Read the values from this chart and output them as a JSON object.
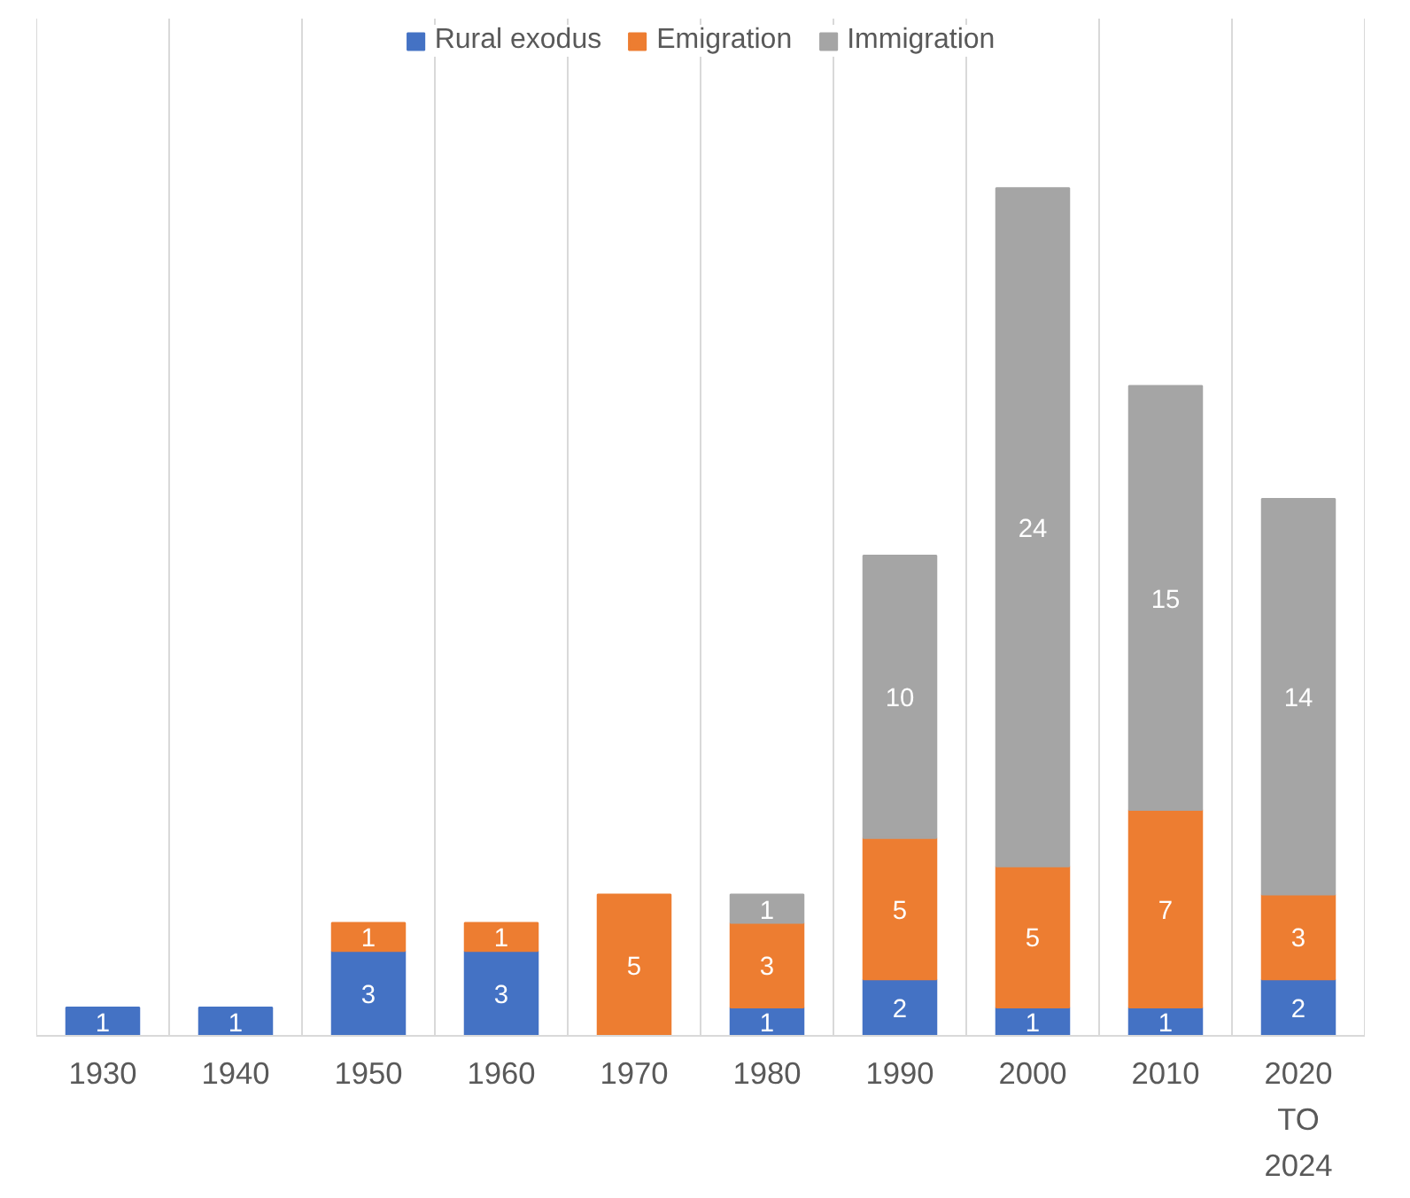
{
  "chart_data": {
    "type": "bar",
    "stacked": true,
    "data_labels": true,
    "grid": "x",
    "legend": "top",
    "categories": [
      "1930",
      "1940",
      "1950",
      "1960",
      "1970",
      "1980",
      "1990",
      "2000",
      "2010",
      "2020 TO 2024"
    ],
    "series": [
      {
        "name": "Rural exodus",
        "color": "#4472c4",
        "values": [
          1,
          1,
          3,
          3,
          null,
          1,
          2,
          1,
          1,
          2
        ]
      },
      {
        "name": "Emigration",
        "color": "#ed7d31",
        "values": [
          null,
          null,
          1,
          1,
          5,
          3,
          5,
          5,
          7,
          3
        ]
      },
      {
        "name": "Immigration",
        "color": "#a5a5a5",
        "values": [
          null,
          null,
          null,
          null,
          null,
          1,
          10,
          24,
          15,
          14
        ]
      }
    ]
  }
}
